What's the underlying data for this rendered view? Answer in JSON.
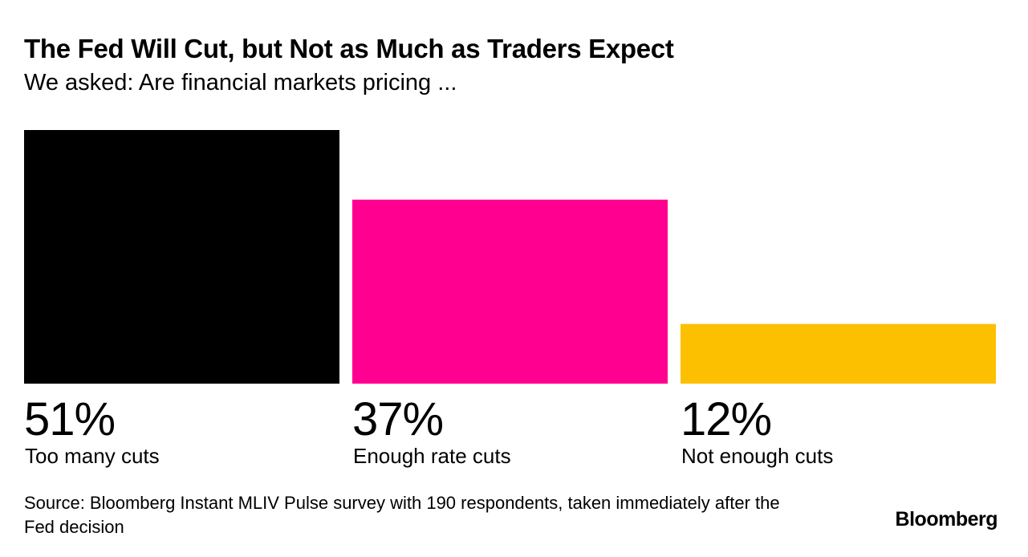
{
  "chart_data": {
    "type": "bar",
    "title": "The Fed Will Cut, but Not as Much as Traders Expect",
    "subtitle": "We asked: Are financial markets pricing ...",
    "categories": [
      "Too many cuts",
      "Enough rate cuts",
      "Not enough cuts"
    ],
    "values": [
      51,
      37,
      12
    ],
    "value_labels": [
      "51%",
      "37%",
      "12%"
    ],
    "colors": [
      "#000000",
      "#ff0090",
      "#fcc000"
    ],
    "unit": "%",
    "ylim": [
      0,
      51
    ],
    "grid": false,
    "legend": "none"
  },
  "footer": {
    "source": "Source: Bloomberg Instant MLIV Pulse survey with 190 respondents, taken immediately after the Fed decision",
    "logo": "Bloomberg"
  }
}
